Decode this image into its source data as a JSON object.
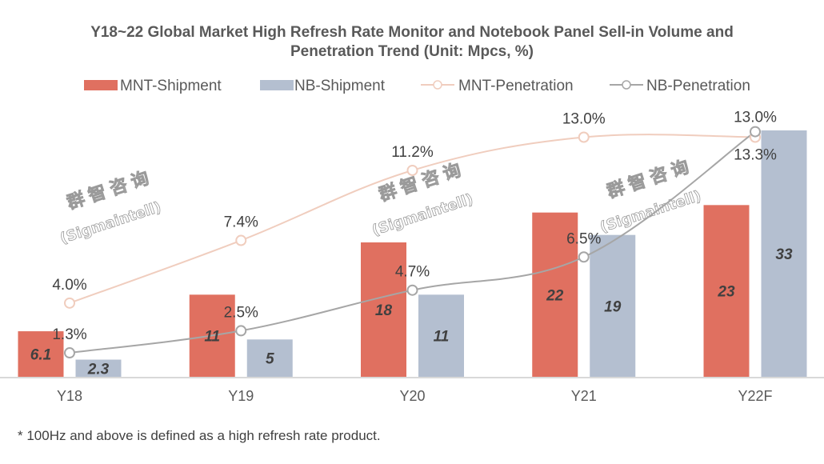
{
  "chart_data": {
    "type": "bar",
    "title_line1": "Y18~22 Global Market High Refresh Rate Monitor and Notebook Panel Sell-in Volume and",
    "title_line2": "Penetration Trend (Unit: Mpcs, %)",
    "categories": [
      "Y18",
      "Y19",
      "Y20",
      "Y21",
      "Y22F"
    ],
    "series": [
      {
        "name": "MNT-Shipment",
        "kind": "bar",
        "color": "#E07060",
        "values": [
          6.1,
          11,
          18,
          22,
          23
        ],
        "labels": [
          "6.1",
          "11",
          "18",
          "22",
          "23"
        ]
      },
      {
        "name": "NB-Shipment",
        "kind": "bar",
        "color": "#B4BFD0",
        "values": [
          2.3,
          5,
          11,
          19,
          33
        ],
        "labels": [
          "2.3",
          "5",
          "11",
          "19",
          "33"
        ]
      },
      {
        "name": "MNT-Penetration",
        "kind": "line",
        "color": "#F0CDBE",
        "values": [
          4.0,
          7.4,
          11.2,
          13.0,
          13.0
        ],
        "labels": [
          "4.0%",
          "7.4%",
          "11.2%",
          "13.0%",
          "13.0%"
        ]
      },
      {
        "name": "NB-Penetration",
        "kind": "line",
        "color": "#A6A6A6",
        "values": [
          1.3,
          2.5,
          4.7,
          6.5,
          13.3
        ],
        "labels": [
          "1.3%",
          "2.5%",
          "4.7%",
          "6.5%",
          "13.3%"
        ]
      }
    ],
    "xlabel": "",
    "ylabel": "",
    "ylim": [
      0,
      35
    ],
    "y2lim": [
      0,
      15
    ],
    "grid": false,
    "legend_position": "top",
    "watermark": {
      "line1": "群智咨询",
      "line2": "(Sigmaintell)"
    },
    "footnote": "* 100Hz and above is defined as a high refresh rate product."
  }
}
